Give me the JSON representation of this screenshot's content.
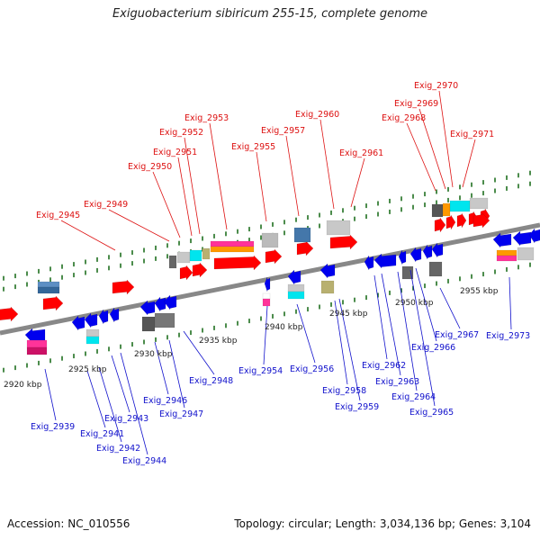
{
  "title": "Exiguobacterium sibiricum 255-15, complete genome",
  "footer": {
    "accession": "Accession: NC_010556",
    "topology": "Topology: circular; Length: 3,034,136 bp; Genes: 3,104"
  },
  "colors": {
    "plus_label": "#dd1111",
    "minus_label": "#1111cc",
    "gene_red": "#ff0000",
    "gene_blue": "#0000ee",
    "backbone": "#888888",
    "tick": "#116611"
  },
  "scale_labels": [
    {
      "text": "2920 kbp"
    },
    {
      "text": "2925 kbp"
    },
    {
      "text": "2930 kbp"
    },
    {
      "text": "2935 kbp"
    },
    {
      "text": "2940 kbp"
    },
    {
      "text": "2945 kbp"
    },
    {
      "text": "2950 kbp"
    },
    {
      "text": "2955 kbp"
    }
  ],
  "plus_genes": [
    {
      "label": "Exig_2945"
    },
    {
      "label": "Exig_2949"
    },
    {
      "label": "Exig_2950"
    },
    {
      "label": "Exig_2951"
    },
    {
      "label": "Exig_2952"
    },
    {
      "label": "Exig_2953"
    },
    {
      "label": "Exig_2955"
    },
    {
      "label": "Exig_2957"
    },
    {
      "label": "Exig_2960"
    },
    {
      "label": "Exig_2961"
    },
    {
      "label": "Exig_2968"
    },
    {
      "label": "Exig_2969"
    },
    {
      "label": "Exig_2970"
    },
    {
      "label": "Exig_2971"
    }
  ],
  "minus_genes": [
    {
      "label": "Exig_2939"
    },
    {
      "label": "Exig_2941"
    },
    {
      "label": "Exig_2942"
    },
    {
      "label": "Exig_2943"
    },
    {
      "label": "Exig_2944"
    },
    {
      "label": "Exig_2946"
    },
    {
      "label": "Exig_2947"
    },
    {
      "label": "Exig_2948"
    },
    {
      "label": "Exig_2954"
    },
    {
      "label": "Exig_2956"
    },
    {
      "label": "Exig_2958"
    },
    {
      "label": "Exig_2959"
    },
    {
      "label": "Exig_2962"
    },
    {
      "label": "Exig_2963"
    },
    {
      "label": "Exig_2964"
    },
    {
      "label": "Exig_2965"
    },
    {
      "label": "Exig_2966"
    },
    {
      "label": "Exig_2967"
    },
    {
      "label": "Exig_2973"
    }
  ]
}
